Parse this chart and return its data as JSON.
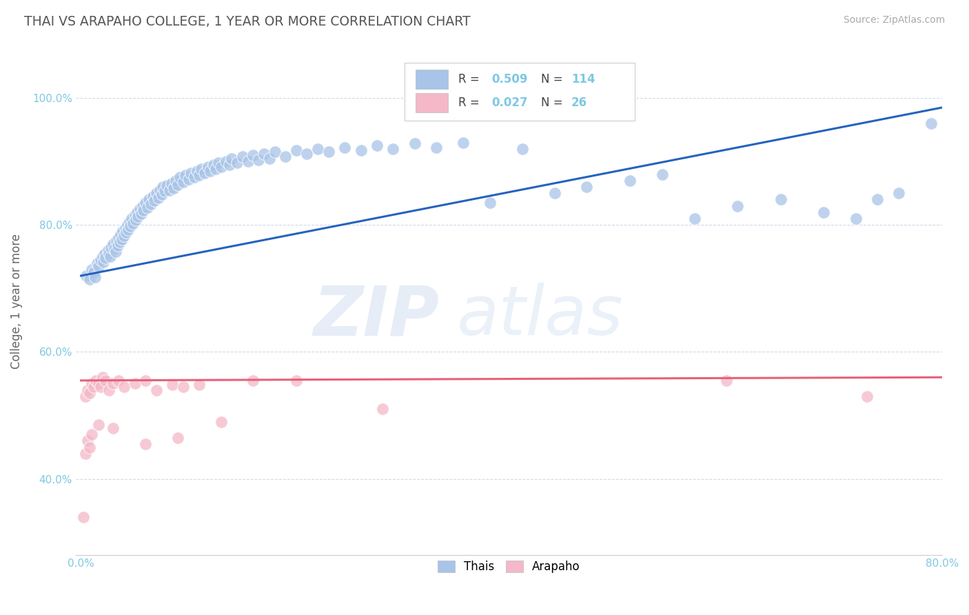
{
  "title": "THAI VS ARAPAHO COLLEGE, 1 YEAR OR MORE CORRELATION CHART",
  "source_text": "Source: ZipAtlas.com",
  "ylabel": "College, 1 year or more",
  "xlim": [
    -0.005,
    0.8
  ],
  "ylim": [
    0.28,
    1.08
  ],
  "xticks": [
    0.0,
    0.1,
    0.2,
    0.3,
    0.4,
    0.5,
    0.6,
    0.7,
    0.8
  ],
  "xticklabels": [
    "0.0%",
    "",
    "",
    "",
    "",
    "",
    "",
    "",
    "80.0%"
  ],
  "yticks": [
    0.4,
    0.6,
    0.8,
    1.0
  ],
  "yticklabels": [
    "40.0%",
    "60.0%",
    "80.0%",
    "100.0%"
  ],
  "legend_labels": [
    "Thais",
    "Arapaho"
  ],
  "legend_r": [
    "0.509",
    "0.027"
  ],
  "legend_n": [
    "114",
    "26"
  ],
  "watermark_zip": "ZIP",
  "watermark_atlas": "atlas",
  "blue_color": "#a8c4e8",
  "pink_color": "#f4b8c8",
  "blue_line_color": "#2463bf",
  "pink_line_color": "#e8607a",
  "title_color": "#555555",
  "axis_label_color": "#666666",
  "tick_color": "#7ec8e3",
  "grid_color": "#d0d8e8",
  "blue_line_x": [
    0.0,
    0.8
  ],
  "blue_line_y": [
    0.72,
    0.985
  ],
  "pink_line_x": [
    0.0,
    0.8
  ],
  "pink_line_y": [
    0.555,
    0.56
  ],
  "thai_scatter_x": [
    0.005,
    0.008,
    0.01,
    0.012,
    0.013,
    0.015,
    0.016,
    0.018,
    0.02,
    0.021,
    0.022,
    0.023,
    0.025,
    0.026,
    0.027,
    0.028,
    0.03,
    0.031,
    0.032,
    0.033,
    0.034,
    0.035,
    0.036,
    0.037,
    0.038,
    0.039,
    0.04,
    0.041,
    0.042,
    0.043,
    0.044,
    0.045,
    0.046,
    0.047,
    0.048,
    0.05,
    0.051,
    0.052,
    0.053,
    0.055,
    0.056,
    0.057,
    0.058,
    0.06,
    0.062,
    0.063,
    0.065,
    0.067,
    0.068,
    0.07,
    0.072,
    0.073,
    0.075,
    0.076,
    0.078,
    0.08,
    0.082,
    0.084,
    0.086,
    0.088,
    0.09,
    0.092,
    0.095,
    0.097,
    0.1,
    0.102,
    0.105,
    0.108,
    0.11,
    0.112,
    0.115,
    0.118,
    0.12,
    0.123,
    0.125,
    0.128,
    0.13,
    0.135,
    0.138,
    0.14,
    0.145,
    0.15,
    0.155,
    0.16,
    0.165,
    0.17,
    0.175,
    0.18,
    0.19,
    0.2,
    0.21,
    0.22,
    0.23,
    0.245,
    0.26,
    0.275,
    0.29,
    0.31,
    0.33,
    0.355,
    0.38,
    0.41,
    0.44,
    0.47,
    0.51,
    0.54,
    0.57,
    0.61,
    0.65,
    0.69,
    0.72,
    0.74,
    0.76,
    0.79
  ],
  "thai_scatter_y": [
    0.72,
    0.715,
    0.73,
    0.725,
    0.718,
    0.74,
    0.735,
    0.745,
    0.75,
    0.742,
    0.755,
    0.748,
    0.76,
    0.755,
    0.75,
    0.765,
    0.77,
    0.762,
    0.758,
    0.775,
    0.768,
    0.78,
    0.773,
    0.785,
    0.778,
    0.79,
    0.783,
    0.795,
    0.788,
    0.8,
    0.793,
    0.805,
    0.798,
    0.81,
    0.803,
    0.815,
    0.808,
    0.82,
    0.813,
    0.825,
    0.818,
    0.83,
    0.823,
    0.835,
    0.828,
    0.84,
    0.833,
    0.845,
    0.838,
    0.85,
    0.843,
    0.855,
    0.848,
    0.86,
    0.853,
    0.862,
    0.855,
    0.865,
    0.858,
    0.87,
    0.863,
    0.875,
    0.868,
    0.878,
    0.872,
    0.882,
    0.875,
    0.885,
    0.878,
    0.888,
    0.882,
    0.892,
    0.885,
    0.895,
    0.888,
    0.898,
    0.892,
    0.9,
    0.895,
    0.905,
    0.898,
    0.908,
    0.9,
    0.91,
    0.902,
    0.912,
    0.905,
    0.915,
    0.908,
    0.918,
    0.912,
    0.92,
    0.915,
    0.922,
    0.918,
    0.925,
    0.92,
    0.928,
    0.922,
    0.93,
    0.835,
    0.92,
    0.85,
    0.86,
    0.87,
    0.88,
    0.81,
    0.83,
    0.84,
    0.82,
    0.81,
    0.84,
    0.85,
    0.96
  ],
  "arapaho_scatter_x": [
    0.004,
    0.006,
    0.008,
    0.01,
    0.012,
    0.014,
    0.016,
    0.018,
    0.02,
    0.023,
    0.026,
    0.03,
    0.035,
    0.04,
    0.05,
    0.06,
    0.07,
    0.085,
    0.095,
    0.11,
    0.13,
    0.16,
    0.2,
    0.28,
    0.6,
    0.73
  ],
  "arapaho_scatter_y": [
    0.53,
    0.54,
    0.535,
    0.55,
    0.545,
    0.555,
    0.55,
    0.545,
    0.56,
    0.555,
    0.54,
    0.55,
    0.555,
    0.545,
    0.55,
    0.555,
    0.54,
    0.548,
    0.545,
    0.548,
    0.49,
    0.555,
    0.555,
    0.51,
    0.555,
    0.53
  ],
  "arapaho_outlier_x": [
    0.002,
    0.004,
    0.006,
    0.008,
    0.01,
    0.016,
    0.03,
    0.06,
    0.09
  ],
  "arapaho_outlier_y": [
    0.34,
    0.44,
    0.46,
    0.45,
    0.47,
    0.485,
    0.48,
    0.455,
    0.465
  ]
}
